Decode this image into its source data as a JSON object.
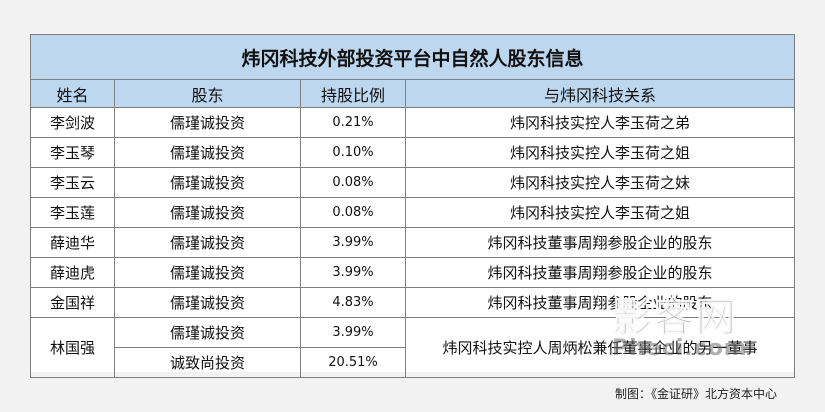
{
  "table": {
    "title": "炜冈科技外部投资平台中自然人股东信息",
    "headers": [
      "姓名",
      "股东",
      "持股比例",
      "与炜冈科技关系"
    ],
    "rows": [
      {
        "name": "李剑波",
        "holder": "儒瑾诚投资",
        "pct": "0.21%",
        "relation": "炜冈科技实控人李玉荷之弟"
      },
      {
        "name": "李玉琴",
        "holder": "儒瑾诚投资",
        "pct": "0.10%",
        "relation": "炜冈科技实控人李玉荷之姐"
      },
      {
        "name": "李玉云",
        "holder": "儒瑾诚投资",
        "pct": "0.08%",
        "relation": "炜冈科技实控人李玉荷之妹"
      },
      {
        "name": "李玉莲",
        "holder": "儒瑾诚投资",
        "pct": "0.08%",
        "relation": "炜冈科技实控人李玉荷之姐"
      },
      {
        "name": "薛迪华",
        "holder": "儒瑾诚投资",
        "pct": "3.99%",
        "relation": "炜冈科技董事周翔参股企业的股东"
      },
      {
        "name": "薛迪虎",
        "holder": "儒瑾诚投资",
        "pct": "3.99%",
        "relation": "炜冈科技董事周翔参股企业的股东"
      },
      {
        "name": "金国祥",
        "holder": "儒瑾诚投资",
        "pct": "4.83%",
        "relation": "炜冈科技董事周翔参股企业的股东"
      }
    ],
    "merged": {
      "name": "林国强",
      "relation": "炜冈科技实控人周炳松兼任董事企业的另一董事",
      "sub": [
        {
          "holder": "儒瑾诚投资",
          "pct": "3.99%"
        },
        {
          "holder": "诚致尚投资",
          "pct": "20.51%"
        }
      ]
    }
  },
  "source": "制图：《金证研》北方资本中心",
  "watermark": {
    "main": "影客网",
    "sub": "Pheci.com"
  }
}
